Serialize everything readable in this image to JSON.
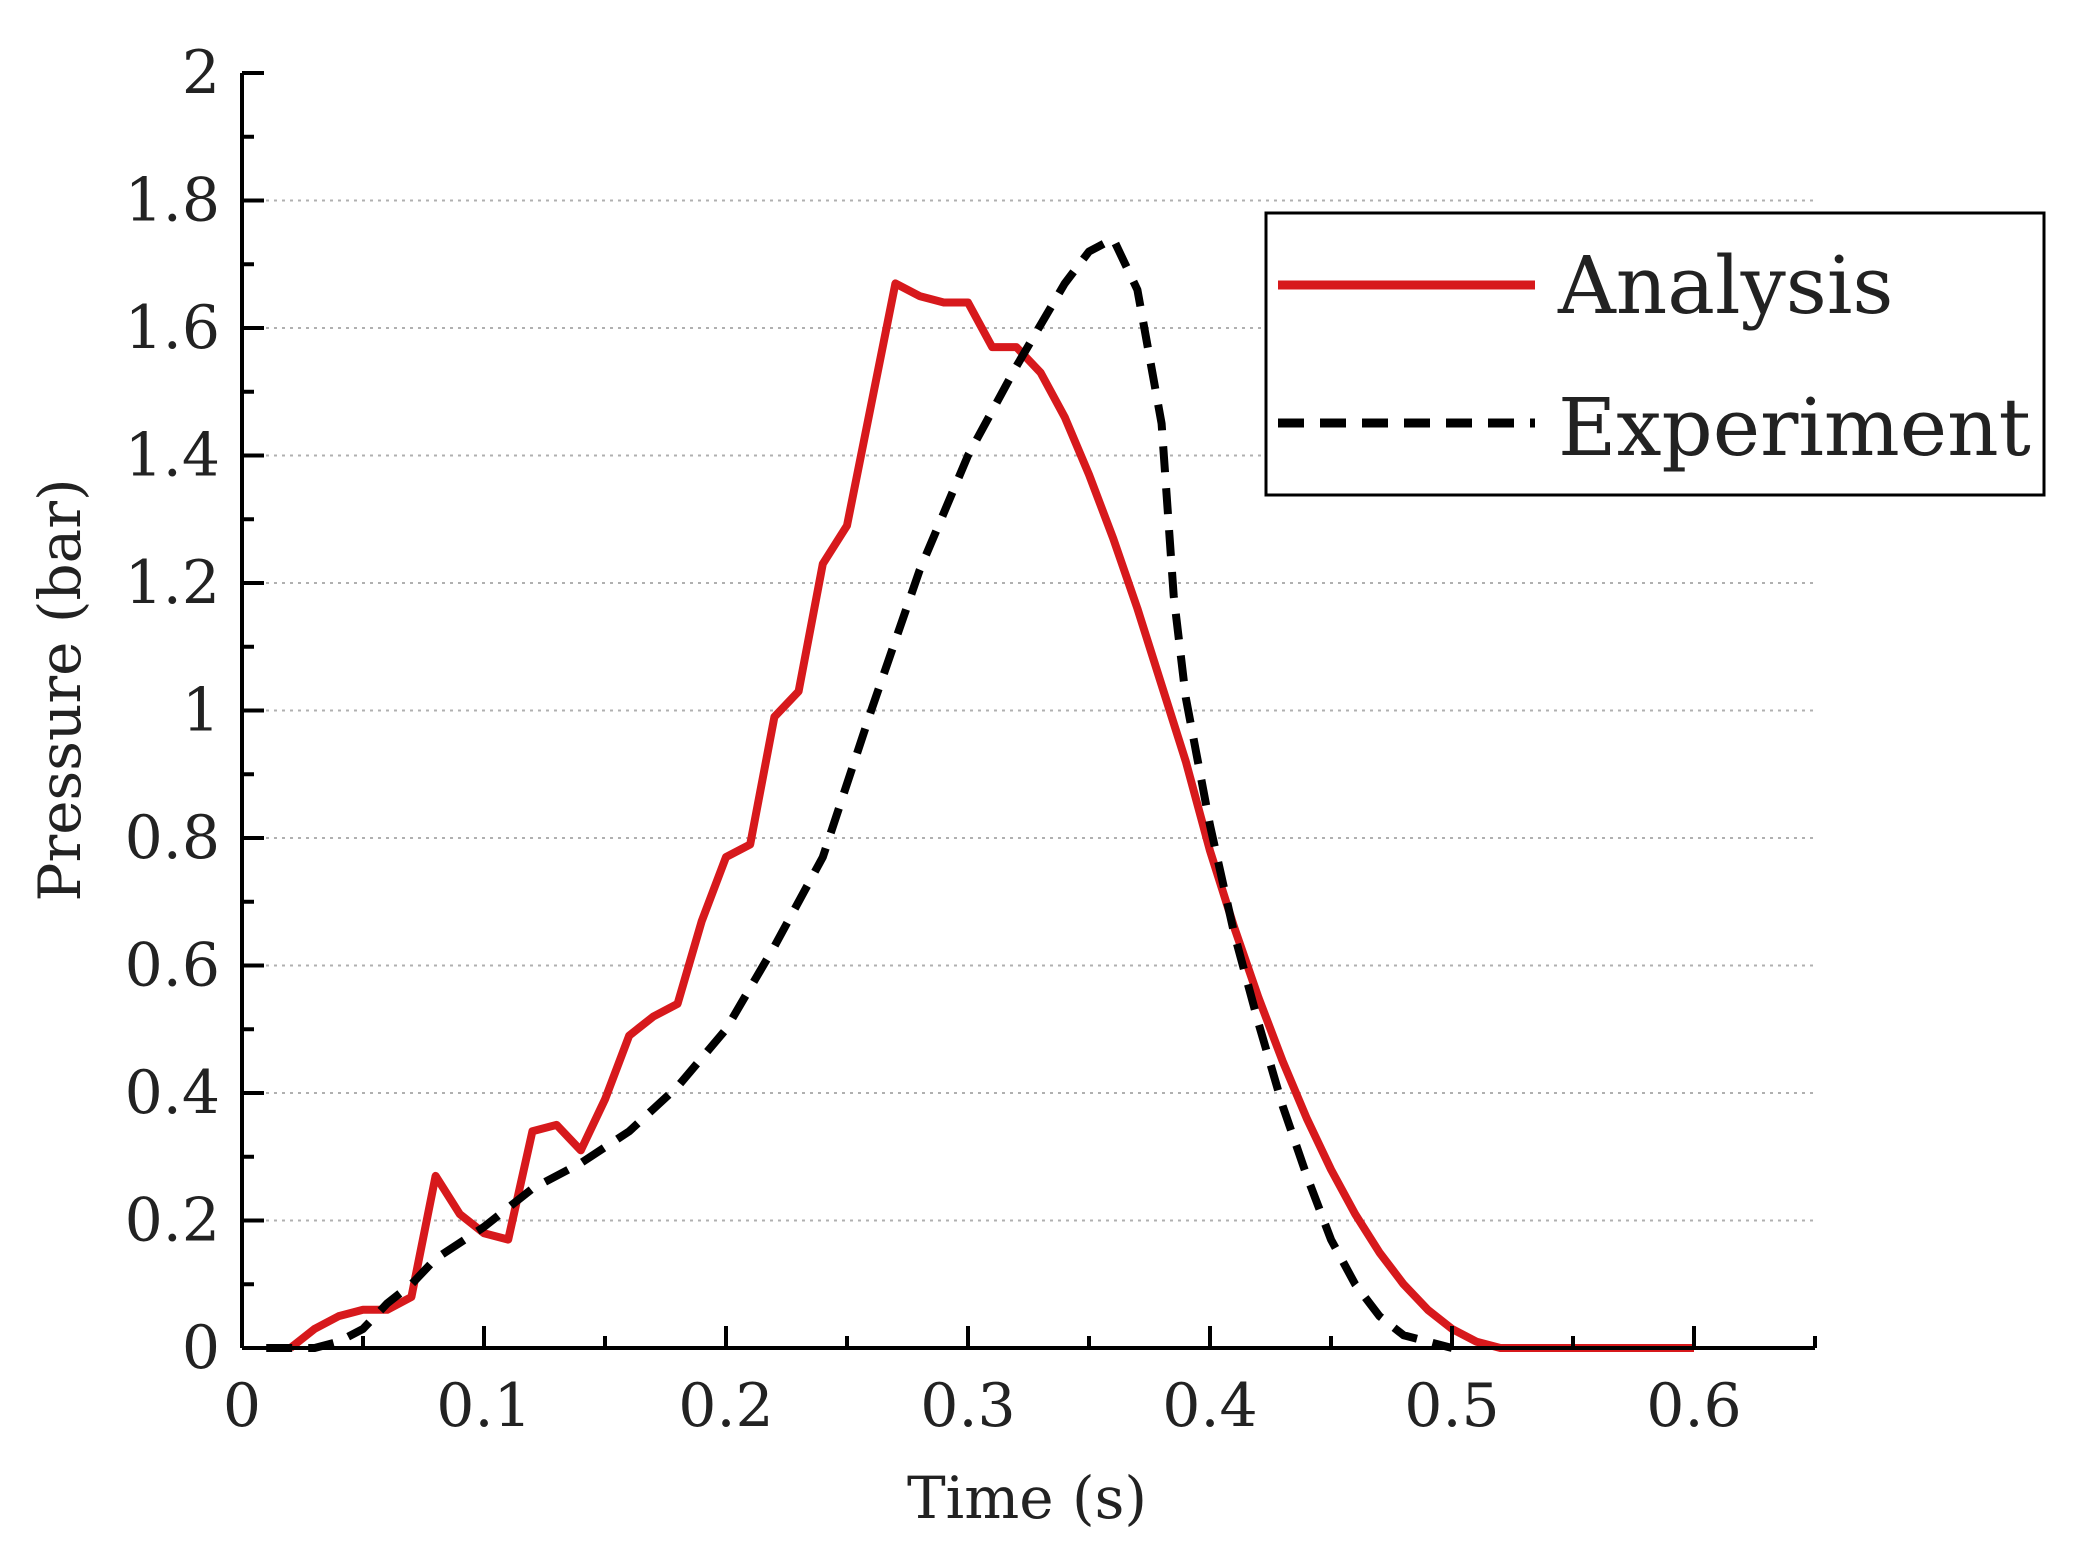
{
  "chart_data": {
    "type": "line",
    "title": "",
    "xlabel": "Time (s)",
    "ylabel": "Pressure (bar)",
    "xlim": [
      0,
      0.65
    ],
    "ylim": [
      0,
      2
    ],
    "x_ticks": [
      "0",
      "0.1",
      "0.2",
      "0.3",
      "0.4",
      "0.5",
      "0.6"
    ],
    "y_ticks": [
      "0",
      "0.2",
      "0.4",
      "0.6",
      "0.8",
      "1",
      "1.2",
      "1.4",
      "1.6",
      "1.8",
      "2"
    ],
    "grid": "horizontal-dotted",
    "legend_placement": "top-right",
    "series": [
      {
        "name": "Analysis",
        "color": "#d7191c",
        "style": "solid",
        "x": [
          0.02,
          0.03,
          0.04,
          0.05,
          0.06,
          0.07,
          0.08,
          0.09,
          0.1,
          0.11,
          0.12,
          0.13,
          0.14,
          0.15,
          0.16,
          0.17,
          0.18,
          0.19,
          0.2,
          0.21,
          0.22,
          0.23,
          0.24,
          0.25,
          0.26,
          0.27,
          0.28,
          0.29,
          0.3,
          0.31,
          0.32,
          0.33,
          0.34,
          0.35,
          0.36,
          0.37,
          0.38,
          0.39,
          0.4,
          0.41,
          0.42,
          0.43,
          0.44,
          0.45,
          0.46,
          0.47,
          0.48,
          0.49,
          0.5,
          0.51,
          0.52,
          0.53,
          0.54,
          0.55,
          0.56,
          0.57,
          0.58,
          0.59,
          0.6
        ],
        "y": [
          0.0,
          0.03,
          0.05,
          0.06,
          0.06,
          0.08,
          0.27,
          0.21,
          0.18,
          0.17,
          0.34,
          0.35,
          0.31,
          0.39,
          0.49,
          0.52,
          0.54,
          0.67,
          0.77,
          0.79,
          0.99,
          1.03,
          1.23,
          1.29,
          1.48,
          1.67,
          1.65,
          1.64,
          1.64,
          1.57,
          1.57,
          1.53,
          1.46,
          1.37,
          1.27,
          1.16,
          1.04,
          0.92,
          0.78,
          0.66,
          0.55,
          0.45,
          0.36,
          0.28,
          0.21,
          0.15,
          0.1,
          0.06,
          0.03,
          0.01,
          0.0,
          0.0,
          0.0,
          0.0,
          0.0,
          0.0,
          0.0,
          0.0,
          0.0
        ]
      },
      {
        "name": "Experiment",
        "color": "#000000",
        "style": "dashed",
        "x": [
          0.01,
          0.03,
          0.04,
          0.05,
          0.06,
          0.07,
          0.08,
          0.1,
          0.12,
          0.14,
          0.16,
          0.18,
          0.2,
          0.22,
          0.24,
          0.26,
          0.28,
          0.3,
          0.32,
          0.34,
          0.35,
          0.36,
          0.37,
          0.38,
          0.385,
          0.39,
          0.4,
          0.41,
          0.42,
          0.43,
          0.44,
          0.45,
          0.46,
          0.47,
          0.48,
          0.49,
          0.5
        ],
        "y": [
          0.0,
          0.0,
          0.01,
          0.03,
          0.07,
          0.1,
          0.14,
          0.19,
          0.25,
          0.29,
          0.34,
          0.41,
          0.5,
          0.63,
          0.77,
          1.0,
          1.22,
          1.4,
          1.54,
          1.67,
          1.72,
          1.74,
          1.66,
          1.45,
          1.18,
          1.02,
          0.82,
          0.65,
          0.51,
          0.38,
          0.27,
          0.17,
          0.1,
          0.05,
          0.02,
          0.01,
          0.0
        ]
      }
    ]
  }
}
